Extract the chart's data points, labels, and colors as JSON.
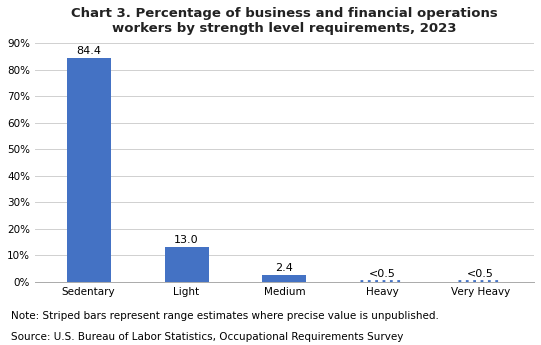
{
  "title": "Chart 3. Percentage of business and financial operations\nworkers by strength level requirements, 2023",
  "categories": [
    "Sedentary",
    "Light",
    "Medium",
    "Heavy",
    "Very Heavy"
  ],
  "values": [
    84.4,
    13.0,
    2.4,
    0.25,
    0.25
  ],
  "labels": [
    "84.4",
    "13.0",
    "2.4",
    "<0.5",
    "<0.5"
  ],
  "bar_color": "#4472C4",
  "striped_indices": [
    3,
    4
  ],
  "ylim": [
    0,
    90
  ],
  "yticks": [
    0,
    10,
    20,
    30,
    40,
    50,
    60,
    70,
    80,
    90
  ],
  "ytick_labels": [
    "0%",
    "10%",
    "20%",
    "30%",
    "40%",
    "50%",
    "60%",
    "70%",
    "80%",
    "90%"
  ],
  "note_line1": "Note: Striped bars represent range estimates where precise value is unpublished.",
  "note_line2": "Source: U.S. Bureau of Labor Statistics, Occupational Requirements Survey",
  "background_color": "#ffffff",
  "grid_color": "#d0d0d0",
  "title_fontsize": 9.5,
  "label_fontsize": 8,
  "tick_fontsize": 7.5,
  "note_fontsize": 7.5,
  "dotted_bar_height": 0.25,
  "bar_width": 0.45
}
